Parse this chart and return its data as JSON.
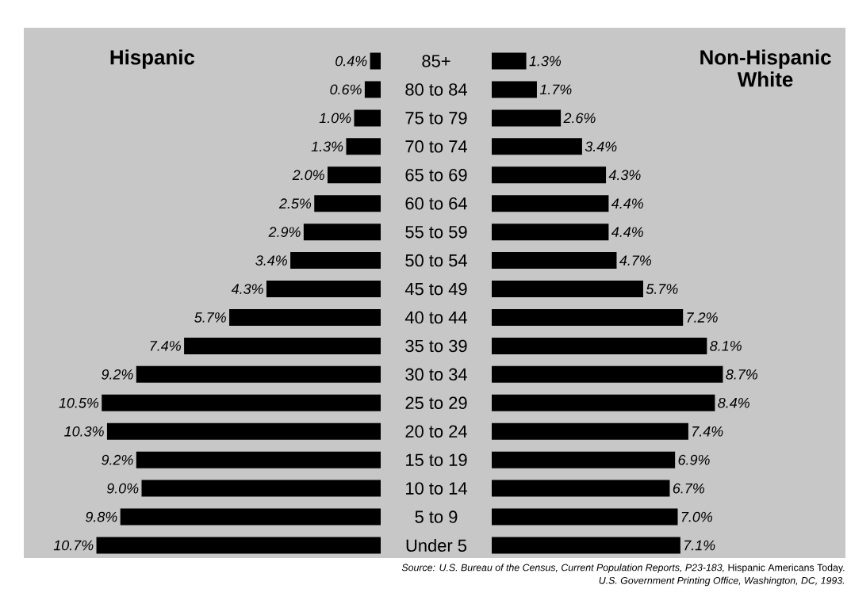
{
  "chart_data": [
    {
      "type": "bar",
      "orientation": "horizontal",
      "categories": [
        "85+",
        "80 to 84",
        "75 to 79",
        "70 to 74",
        "65 to 69",
        "60 to 64",
        "55 to 59",
        "50 to 54",
        "45 to 49",
        "40 to 44",
        "35 to 39",
        "30 to 34",
        "25 to 29",
        "20 to 24",
        "15 to 19",
        "10 to 14",
        "5 to 9",
        "Under 5"
      ],
      "series": [
        {
          "name": "Hispanic",
          "color": "#000000",
          "values": [
            0.4,
            0.6,
            1.0,
            1.3,
            2.0,
            2.5,
            2.9,
            3.4,
            4.3,
            5.7,
            7.4,
            9.2,
            10.5,
            10.3,
            9.2,
            9.0,
            9.8,
            10.7
          ],
          "value_labels": [
            "0.4%",
            "0.6%",
            "1.0%",
            "1.3%",
            "2.0%",
            "2.5%",
            "2.9%",
            "3.4%",
            "4.3%",
            "5.7%",
            "7.4%",
            "9.2%",
            "10.5%",
            "10.3%",
            "9.2%",
            "9.0%",
            "9.8%",
            "10.7%"
          ]
        }
      ]
    },
    {
      "type": "bar",
      "orientation": "horizontal",
      "categories": [
        null,
        null,
        null,
        null,
        null,
        null,
        null,
        null,
        null,
        null,
        null,
        null,
        null,
        null,
        null,
        null,
        null,
        null
      ],
      "series": [
        {
          "name": "Non-Hispanic White",
          "color": "#000000",
          "values": [
            1.3,
            1.7,
            2.6,
            3.4,
            4.3,
            4.4,
            4.4,
            4.7,
            5.7,
            7.2,
            8.1,
            8.7,
            8.4,
            7.4,
            6.9,
            6.7,
            7.0,
            7.1
          ],
          "value_labels": [
            "1.3%",
            "1.7%",
            "2.6%",
            "3.4%",
            "4.3%",
            "4.4%",
            "4.4%",
            "4.7%",
            "5.7%",
            "7.2%",
            "8.1%",
            "8.7%",
            "8.4%",
            "7.4%",
            "6.9%",
            "6.7%",
            "7.0%",
            "7.1%"
          ]
        }
      ],
      "annotations": [
        "*Source: U.S. Bureau of the Census, Current Population Reports, P23-183,* Hispanic Americans Today.",
        "*U.S. Government Printing Office, Washington, DC, 1993.*"
      ]
    }
  ]
}
